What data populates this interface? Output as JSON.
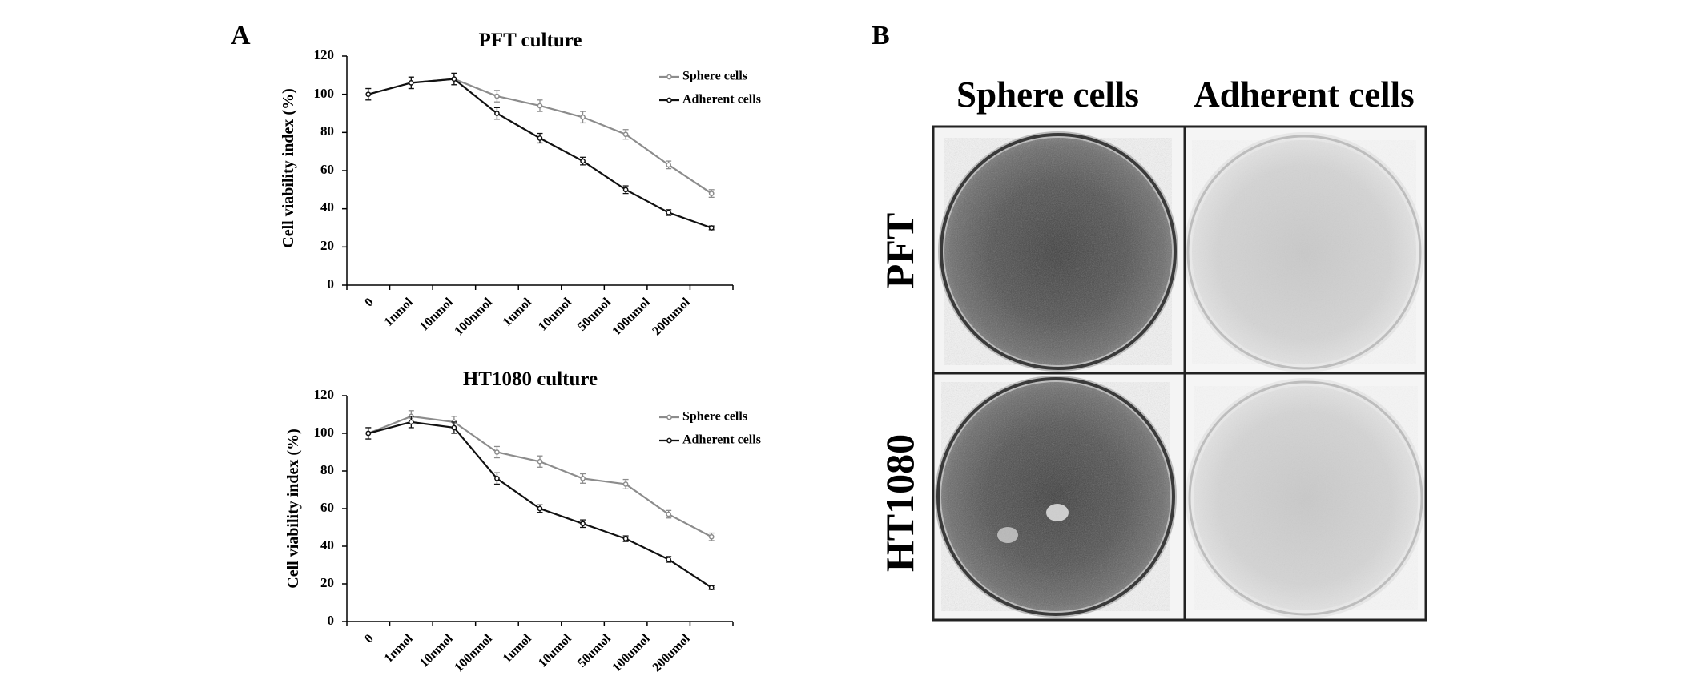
{
  "panels": {
    "a_label": "A",
    "b_label": "B"
  },
  "colors": {
    "sphere": "#8c8c8c",
    "adherent": "#111111"
  },
  "chart_data": [
    {
      "type": "line",
      "title": "PFT culture",
      "xlabel": "",
      "ylabel": "Cell viability index (%)",
      "ylim": [
        0,
        120
      ],
      "yticks": [
        "0",
        "20",
        "40",
        "60",
        "80",
        "100",
        "120"
      ],
      "categories": [
        "0",
        "1nmol",
        "10nmol",
        "100nmol",
        "1umol",
        "10umol",
        "50umol",
        "100umol",
        "200umol"
      ],
      "legend_position": "top-right",
      "series": [
        {
          "name": "Sphere cells",
          "values": [
            100,
            106,
            108,
            99,
            94,
            88,
            79,
            63,
            48
          ],
          "errors": [
            3,
            3,
            3,
            3,
            3,
            3,
            2.5,
            2,
            2
          ]
        },
        {
          "name": "Adherent cells",
          "values": [
            100,
            106,
            108,
            90,
            77,
            65,
            50,
            38,
            30
          ],
          "errors": [
            3,
            3,
            3,
            3,
            2.5,
            2,
            2,
            1.5,
            1
          ]
        }
      ]
    },
    {
      "type": "line",
      "title": "HT1080 culture",
      "xlabel": "",
      "ylabel": "Cell viability index (%)",
      "ylim": [
        0,
        120
      ],
      "yticks": [
        "0",
        "20",
        "40",
        "60",
        "80",
        "100",
        "120"
      ],
      "categories": [
        "0",
        "1nmol",
        "10nmol",
        "100nmol",
        "1umol",
        "10umol",
        "50umol",
        "100umol",
        "200umol"
      ],
      "legend_position": "top-right",
      "series": [
        {
          "name": "Sphere cells",
          "values": [
            100,
            109,
            106,
            90,
            85,
            76,
            73,
            57,
            45
          ],
          "errors": [
            3,
            3,
            3,
            3,
            3,
            2.5,
            2.5,
            2,
            2
          ]
        },
        {
          "name": "Adherent cells",
          "values": [
            100,
            106,
            103,
            76,
            60,
            52,
            44,
            33,
            18
          ],
          "errors": [
            3,
            3,
            3,
            3,
            2,
            2,
            1.5,
            1.5,
            1
          ]
        }
      ]
    }
  ],
  "photo_grid": {
    "columns": [
      "Sphere cells",
      "Adherent cells"
    ],
    "rows": [
      "PFT",
      "HT1080"
    ]
  }
}
